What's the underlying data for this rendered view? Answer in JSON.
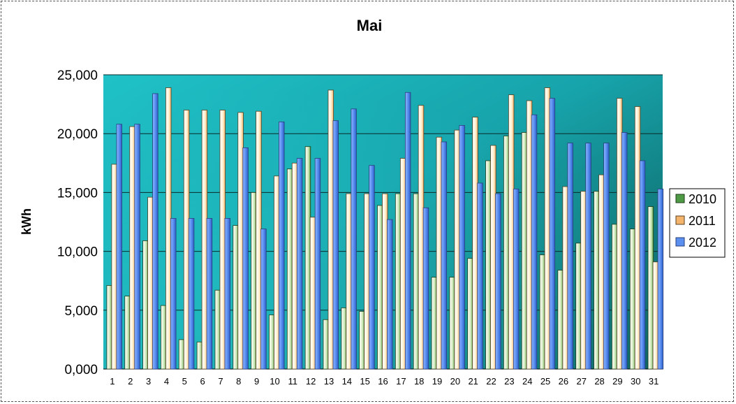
{
  "chart_data": {
    "type": "bar",
    "title": "Mai",
    "xlabel": "",
    "ylabel": "kWh",
    "ylim": [
      0,
      25000
    ],
    "yticks": [
      "0,000",
      "5,000",
      "10,000",
      "15,000",
      "20,000",
      "25,000"
    ],
    "ytick_values": [
      0,
      5000,
      10000,
      15000,
      20000,
      25000
    ],
    "grid": "horizontal",
    "legend_position": "right",
    "categories": [
      "1",
      "2",
      "3",
      "4",
      "5",
      "6",
      "7",
      "8",
      "9",
      "10",
      "11",
      "12",
      "13",
      "14",
      "15",
      "16",
      "17",
      "18",
      "19",
      "20",
      "21",
      "22",
      "23",
      "24",
      "25",
      "26",
      "27",
      "28",
      "29",
      "30",
      "31"
    ],
    "series": [
      {
        "name": "2010",
        "color": "#4f9a45",
        "values": [
          7100,
          6200,
          10900,
          5400,
          2500,
          2300,
          6700,
          12200,
          15000,
          4600,
          17000,
          18900,
          4200,
          5200,
          4900,
          13900,
          14900,
          14900,
          7800,
          7800,
          9400,
          17700,
          19800,
          20100,
          9700,
          8400,
          10700,
          15100,
          12300,
          11900,
          13800
        ]
      },
      {
        "name": "2011",
        "color": "#f5b46b",
        "values": [
          17400,
          20600,
          14600,
          23900,
          22000,
          22000,
          22000,
          21800,
          21900,
          16400,
          17500,
          12900,
          23700,
          14900,
          14900,
          14900,
          17900,
          22400,
          19700,
          20300,
          21400,
          19000,
          23300,
          22800,
          23900,
          15500,
          15100,
          16500,
          23000,
          22300,
          9100
        ]
      },
      {
        "name": "2012",
        "color": "#5b8ff0",
        "values": [
          20800,
          20800,
          23400,
          12800,
          12800,
          12800,
          12800,
          18800,
          11900,
          21000,
          17900,
          17900,
          21100,
          22100,
          17300,
          12700,
          23500,
          13700,
          19300,
          20700,
          15800,
          14900,
          15300,
          21600,
          23000,
          19200,
          19200,
          19200,
          20100,
          17700,
          15300
        ]
      }
    ]
  }
}
